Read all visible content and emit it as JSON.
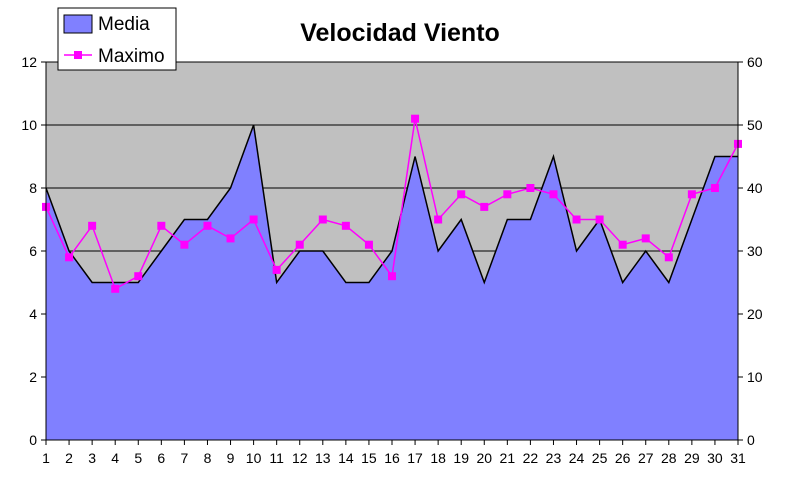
{
  "chart_data": {
    "type": "area",
    "title": "Velocidad Viento",
    "categories": [
      "1",
      "2",
      "3",
      "4",
      "5",
      "6",
      "7",
      "8",
      "9",
      "10",
      "11",
      "12",
      "13",
      "14",
      "15",
      "16",
      "17",
      "18",
      "19",
      "20",
      "21",
      "22",
      "23",
      "24",
      "25",
      "26",
      "27",
      "28",
      "29",
      "30",
      "31"
    ],
    "series": [
      {
        "name": "Media",
        "type": "area",
        "axis": "left",
        "color": "#8080ff",
        "values": [
          8,
          6,
          5,
          5,
          5,
          6,
          7,
          7,
          8,
          10,
          5,
          6,
          6,
          5,
          5,
          6,
          9,
          6,
          7,
          5,
          7,
          7,
          9,
          6,
          7,
          5,
          6,
          5,
          7,
          9,
          9
        ]
      },
      {
        "name": "Maximo",
        "type": "line",
        "axis": "right",
        "color": "#ff00ff",
        "values": [
          37,
          29,
          34,
          24,
          26,
          34,
          31,
          34,
          32,
          35,
          27,
          31,
          35,
          34,
          31,
          26,
          51,
          35,
          39,
          37,
          39,
          40,
          39,
          35,
          35,
          31,
          32,
          29,
          39,
          40,
          47
        ]
      }
    ],
    "y_left": {
      "min": 0,
      "max": 12,
      "ticks": [
        "0",
        "2",
        "4",
        "6",
        "8",
        "10",
        "12"
      ]
    },
    "y_right": {
      "min": 0,
      "max": 60,
      "ticks": [
        "0",
        "10",
        "20",
        "30",
        "40",
        "50",
        "60"
      ]
    },
    "grid": true,
    "legend": {
      "placement": "top-left",
      "entries": [
        "Media",
        "Maximo"
      ]
    },
    "colors": {
      "plot_background": "#c0c0c0",
      "area": "#8080ff",
      "line": "#ff00ff",
      "gridline": "#000000"
    }
  }
}
